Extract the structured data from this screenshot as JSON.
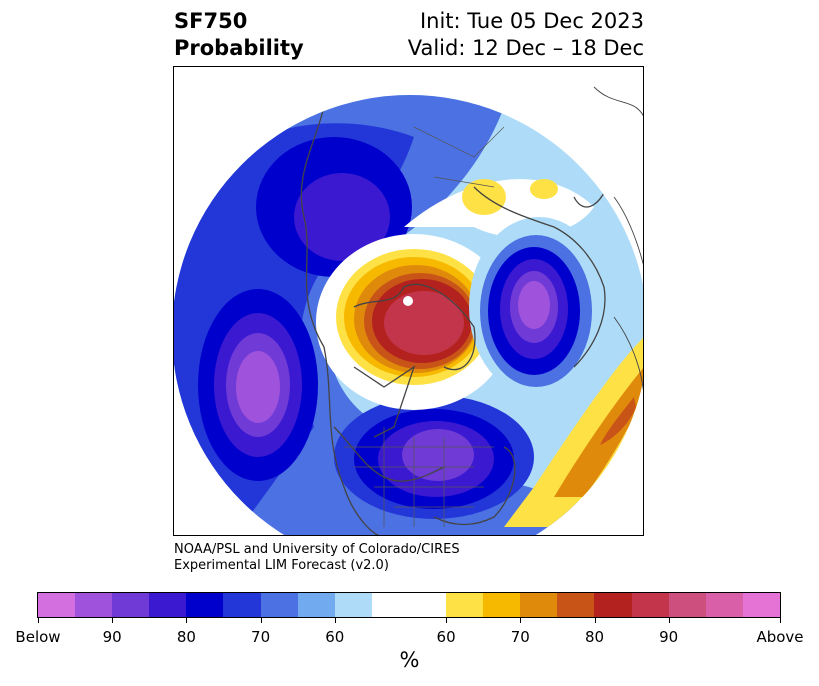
{
  "title": {
    "left_line1": "SF750",
    "left_line2": "Probability",
    "right_line1": "Init: Tue 05 Dec 2023",
    "right_line2": "Valid: 12 Dec – 18 Dec"
  },
  "credit": {
    "line1": "NOAA/PSL and University of Colorado/CIRES",
    "line2": "Experimental LIM Forecast (v2.0)"
  },
  "colorbar": {
    "unit": "%",
    "colors": [
      "#d46fe0",
      "#9f52db",
      "#6f3ad6",
      "#3a19d1",
      "#0000cd",
      "#2337d9",
      "#4b71e2",
      "#71aaee",
      "#aedcf8",
      "#ffffff",
      "#fee145",
      "#f6b900",
      "#e08a0c",
      "#c85418",
      "#b3221e",
      "#c3354a",
      "#cc4f7d",
      "#d85fa8",
      "#e573d6"
    ],
    "tick_labels": [
      "Below",
      "90",
      "80",
      "70",
      "60",
      "60",
      "70",
      "80",
      "90",
      "Above"
    ]
  },
  "map": {
    "projection": "north-polar stereographic",
    "field": "SF750 probability",
    "features": {
      "north_pacific_low": "below (purple core)",
      "western_north_america": "below (blue)",
      "polar_siberia_high": "above (red core)",
      "northern_europe_low": "below (purple core)",
      "eastern_north_atlantic_high": "above (orange)"
    }
  }
}
